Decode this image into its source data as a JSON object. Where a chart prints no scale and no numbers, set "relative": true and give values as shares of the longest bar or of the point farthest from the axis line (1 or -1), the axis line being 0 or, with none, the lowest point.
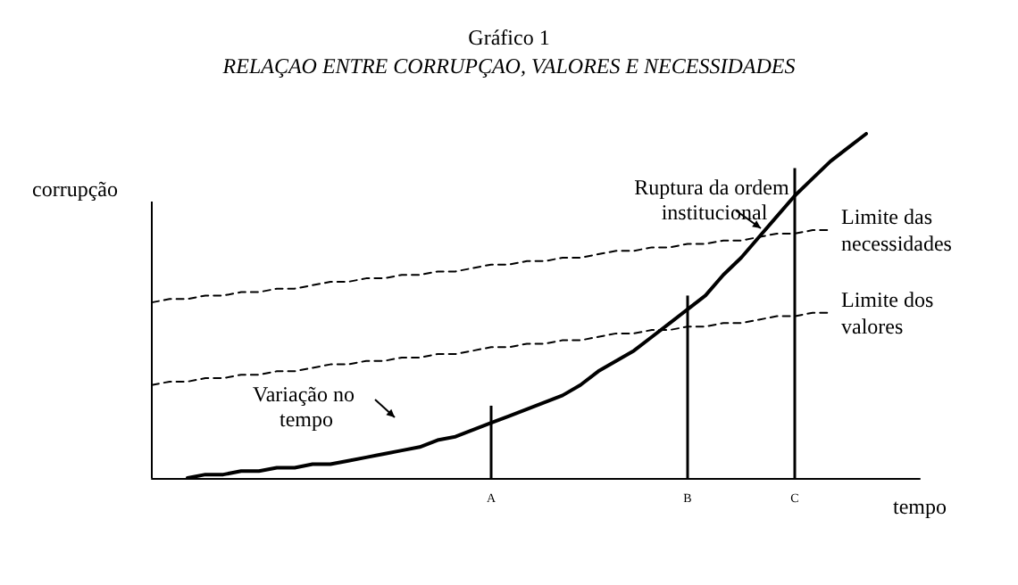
{
  "chart_data": {
    "type": "line",
    "title": "Gráfico 1",
    "subtitle": "RELAÇAO ENTRE CORRUPÇAO, VALORES E NECESSIDADES",
    "xlabel": "tempo",
    "ylabel": "corrupção",
    "relative": true,
    "grid": false,
    "legend": false,
    "marker": "none",
    "categories": [
      null,
      null,
      null,
      null,
      null,
      null,
      null,
      null,
      null,
      null,
      null,
      null,
      null,
      null,
      null,
      null,
      null,
      null,
      null,
      "A",
      null,
      null,
      null,
      null,
      null,
      null,
      null,
      null,
      null,
      null,
      "B",
      null,
      null,
      null,
      null,
      null,
      "C",
      null,
      null,
      null,
      null,
      null,
      null,
      null
    ],
    "series": [
      {
        "color": "#000000",
        "line_style": "solid",
        "values": [
          null,
          null,
          0,
          0.01,
          0.01,
          0.02,
          0.02,
          0.03,
          0.03,
          0.04,
          0.04,
          0.05,
          0.06,
          0.07,
          0.08,
          0.09,
          0.11,
          0.12,
          0.14,
          0.16,
          0.18,
          0.2,
          0.22,
          0.24,
          0.27,
          0.31,
          0.34,
          0.37,
          0.41,
          0.45,
          0.49,
          0.53,
          0.59,
          0.64,
          0.7,
          0.76,
          0.82,
          0.87,
          0.92,
          0.96,
          1,
          null,
          null,
          null
        ]
      },
      {
        "name": "Limite das necessidades",
        "color": "#000000",
        "line_style": "dashed",
        "values": [
          0.51,
          0.52,
          0.52,
          0.53,
          0.53,
          0.54,
          0.54,
          0.55,
          0.55,
          0.56,
          0.57,
          0.57,
          0.58,
          0.58,
          0.59,
          0.59,
          0.6,
          0.6,
          0.61,
          0.62,
          0.62,
          0.63,
          0.63,
          0.64,
          0.64,
          0.65,
          0.66,
          0.66,
          0.67,
          0.67,
          0.68,
          0.68,
          0.69,
          0.69,
          0.7,
          0.71,
          0.71,
          0.72,
          0.72,
          null,
          null,
          null,
          null,
          null
        ]
      },
      {
        "name": "Limite dos valores",
        "color": "#000000",
        "line_style": "dashed",
        "values": [
          0.27,
          0.28,
          0.28,
          0.29,
          0.29,
          0.3,
          0.3,
          0.31,
          0.31,
          0.32,
          0.33,
          0.33,
          0.34,
          0.34,
          0.35,
          0.35,
          0.36,
          0.36,
          0.37,
          0.38,
          0.38,
          0.39,
          0.39,
          0.4,
          0.4,
          0.41,
          0.42,
          0.42,
          0.43,
          0.43,
          0.44,
          0.44,
          0.45,
          0.45,
          0.46,
          0.47,
          0.47,
          0.48,
          0.48,
          null,
          null,
          null,
          null,
          null
        ]
      },
      {
        "type": "bar",
        "color": "#000000",
        "values": [
          null,
          null,
          null,
          null,
          null,
          null,
          null,
          null,
          null,
          null,
          null,
          null,
          null,
          null,
          null,
          null,
          null,
          null,
          null,
          0.21,
          null,
          null,
          null,
          null,
          null,
          null,
          null,
          null,
          null,
          null,
          0.53,
          null,
          null,
          null,
          null,
          null,
          0.9,
          null,
          null,
          null,
          null,
          null,
          null,
          null
        ]
      }
    ],
    "annotations": [
      "Ruptura da ordem institucional",
      "Variação no tempo"
    ]
  }
}
